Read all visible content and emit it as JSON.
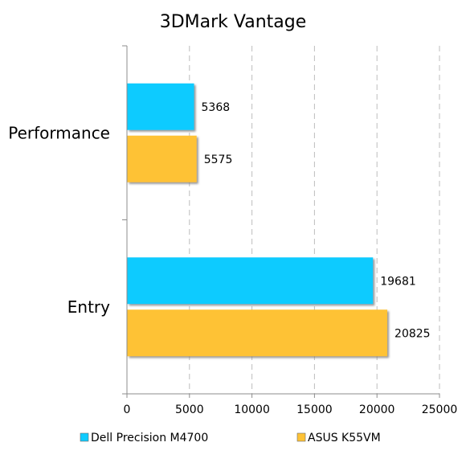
{
  "chart_data": {
    "type": "bar",
    "orientation": "horizontal",
    "title": "3DMark Vantage",
    "categories": [
      "Performance",
      "Entry"
    ],
    "series": [
      {
        "name": "Dell Precision M4700",
        "values": [
          5368,
          19681
        ],
        "color": "#0fcbff"
      },
      {
        "name": "ASUS K55VM",
        "values": [
          5575,
          20825
        ],
        "color": "#fec235"
      }
    ],
    "xlim": [
      0,
      25000
    ],
    "xticks": [
      "0",
      "5000",
      "10000",
      "15000",
      "20000",
      "25000"
    ],
    "data_labels": true,
    "grid": "vertical dashed",
    "legend_position": "bottom"
  }
}
